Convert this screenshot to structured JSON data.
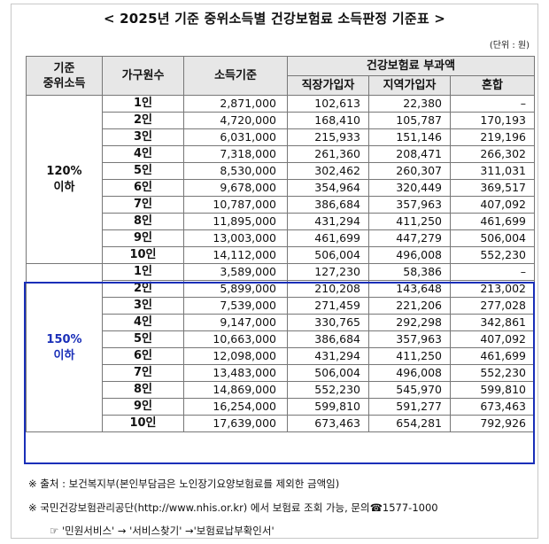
{
  "title": "< 2025년 기준 중위소득별 건강보험료 소득판정 기준표 >",
  "unit": "(단위 : 원)",
  "headers": {
    "group": [
      "기준",
      "중위소득"
    ],
    "households": "가구원수",
    "income_basis": "소득기준",
    "premium": "건강보험료 부과액",
    "workplace": "직장가입자",
    "local": "지역가입자",
    "mixed": "혼합"
  },
  "groups": [
    {
      "label": [
        "120%",
        "이하"
      ],
      "rows": [
        [
          "1인",
          "2,871,000",
          "102,613",
          "22,380",
          "–"
        ],
        [
          "2인",
          "4,720,000",
          "168,410",
          "105,787",
          "170,193"
        ],
        [
          "3인",
          "6,031,000",
          "215,933",
          "151,146",
          "219,196"
        ],
        [
          "4인",
          "7,318,000",
          "261,360",
          "208,471",
          "266,302"
        ],
        [
          "5인",
          "8,530,000",
          "302,462",
          "260,307",
          "311,031"
        ],
        [
          "6인",
          "9,678,000",
          "354,964",
          "320,449",
          "369,517"
        ],
        [
          "7인",
          "10,787,000",
          "386,684",
          "357,963",
          "407,092"
        ],
        [
          "8인",
          "11,895,000",
          "431,294",
          "411,250",
          "461,699"
        ],
        [
          "9인",
          "13,003,000",
          "461,699",
          "447,279",
          "506,004"
        ],
        [
          "10인",
          "14,112,000",
          "506,004",
          "496,008",
          "552,230"
        ]
      ]
    },
    {
      "label": [
        "150%",
        "이하"
      ],
      "rows": [
        [
          "1인",
          "3,589,000",
          "127,230",
          "58,386",
          "–"
        ],
        [
          "2인",
          "5,899,000",
          "210,208",
          "143,648",
          "213,002"
        ],
        [
          "3인",
          "7,539,000",
          "271,459",
          "221,206",
          "277,028"
        ],
        [
          "4인",
          "9,147,000",
          "330,765",
          "292,298",
          "342,861"
        ],
        [
          "5인",
          "10,663,000",
          "386,684",
          "357,963",
          "407,092"
        ],
        [
          "6인",
          "12,098,000",
          "431,294",
          "411,250",
          "461,699"
        ],
        [
          "7인",
          "13,483,000",
          "506,004",
          "496,008",
          "552,230"
        ],
        [
          "8인",
          "14,869,000",
          "552,230",
          "545,970",
          "599,810"
        ],
        [
          "9인",
          "16,254,000",
          "599,810",
          "591,277",
          "673,463"
        ],
        [
          "10인",
          "17,639,000",
          "673,463",
          "654,281",
          "792,926"
        ]
      ]
    }
  ],
  "notes": {
    "source": "※ 출처 : 보건복지부(본인부담금은 노인장기요양보험료를 제외한 금액임)",
    "contact": "※ 국민건강보험관리공단(http://www.nhis.or.kr) 에서 보험료 조회 가능, 문의☎1577-1000",
    "path": "☞ '민원서비스' → '서비스찾기' →'보험료납부확인서'"
  },
  "colors": {
    "highlight": "#1a2fb8",
    "header_bg": "#e7e7e7"
  }
}
